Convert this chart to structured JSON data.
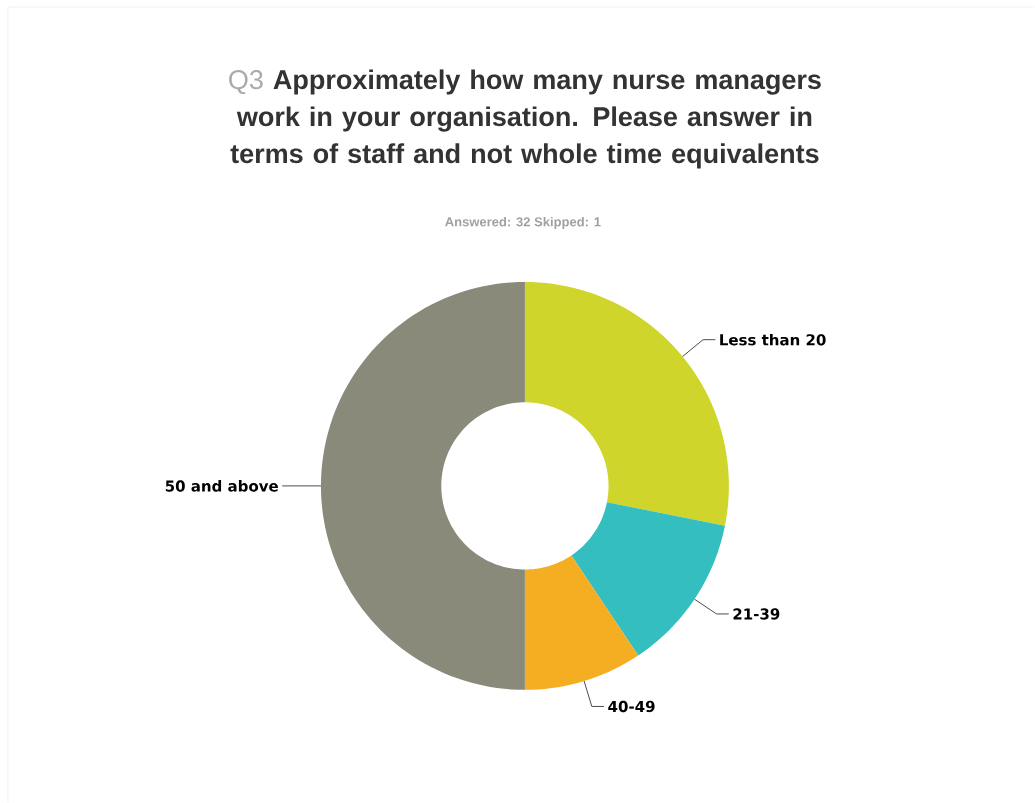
{
  "chart_data": {
    "type": "donut",
    "title": "Approximately how many nurse managers work in your organisation. Please answer in terms of staff and not whole time equivalents",
    "subtitle": "Answered: 32    Skipped: 1",
    "annotations": [
      "Q3"
    ],
    "categories": [
      "Less than 20",
      "21-39",
      "40-49",
      "50 and above"
    ],
    "values": [
      28.125,
      12.5,
      9.375,
      50
    ],
    "colors": [
      "#cfd52a",
      "#35bec0",
      "#f5ae22",
      "#8a8a7a"
    ]
  }
}
